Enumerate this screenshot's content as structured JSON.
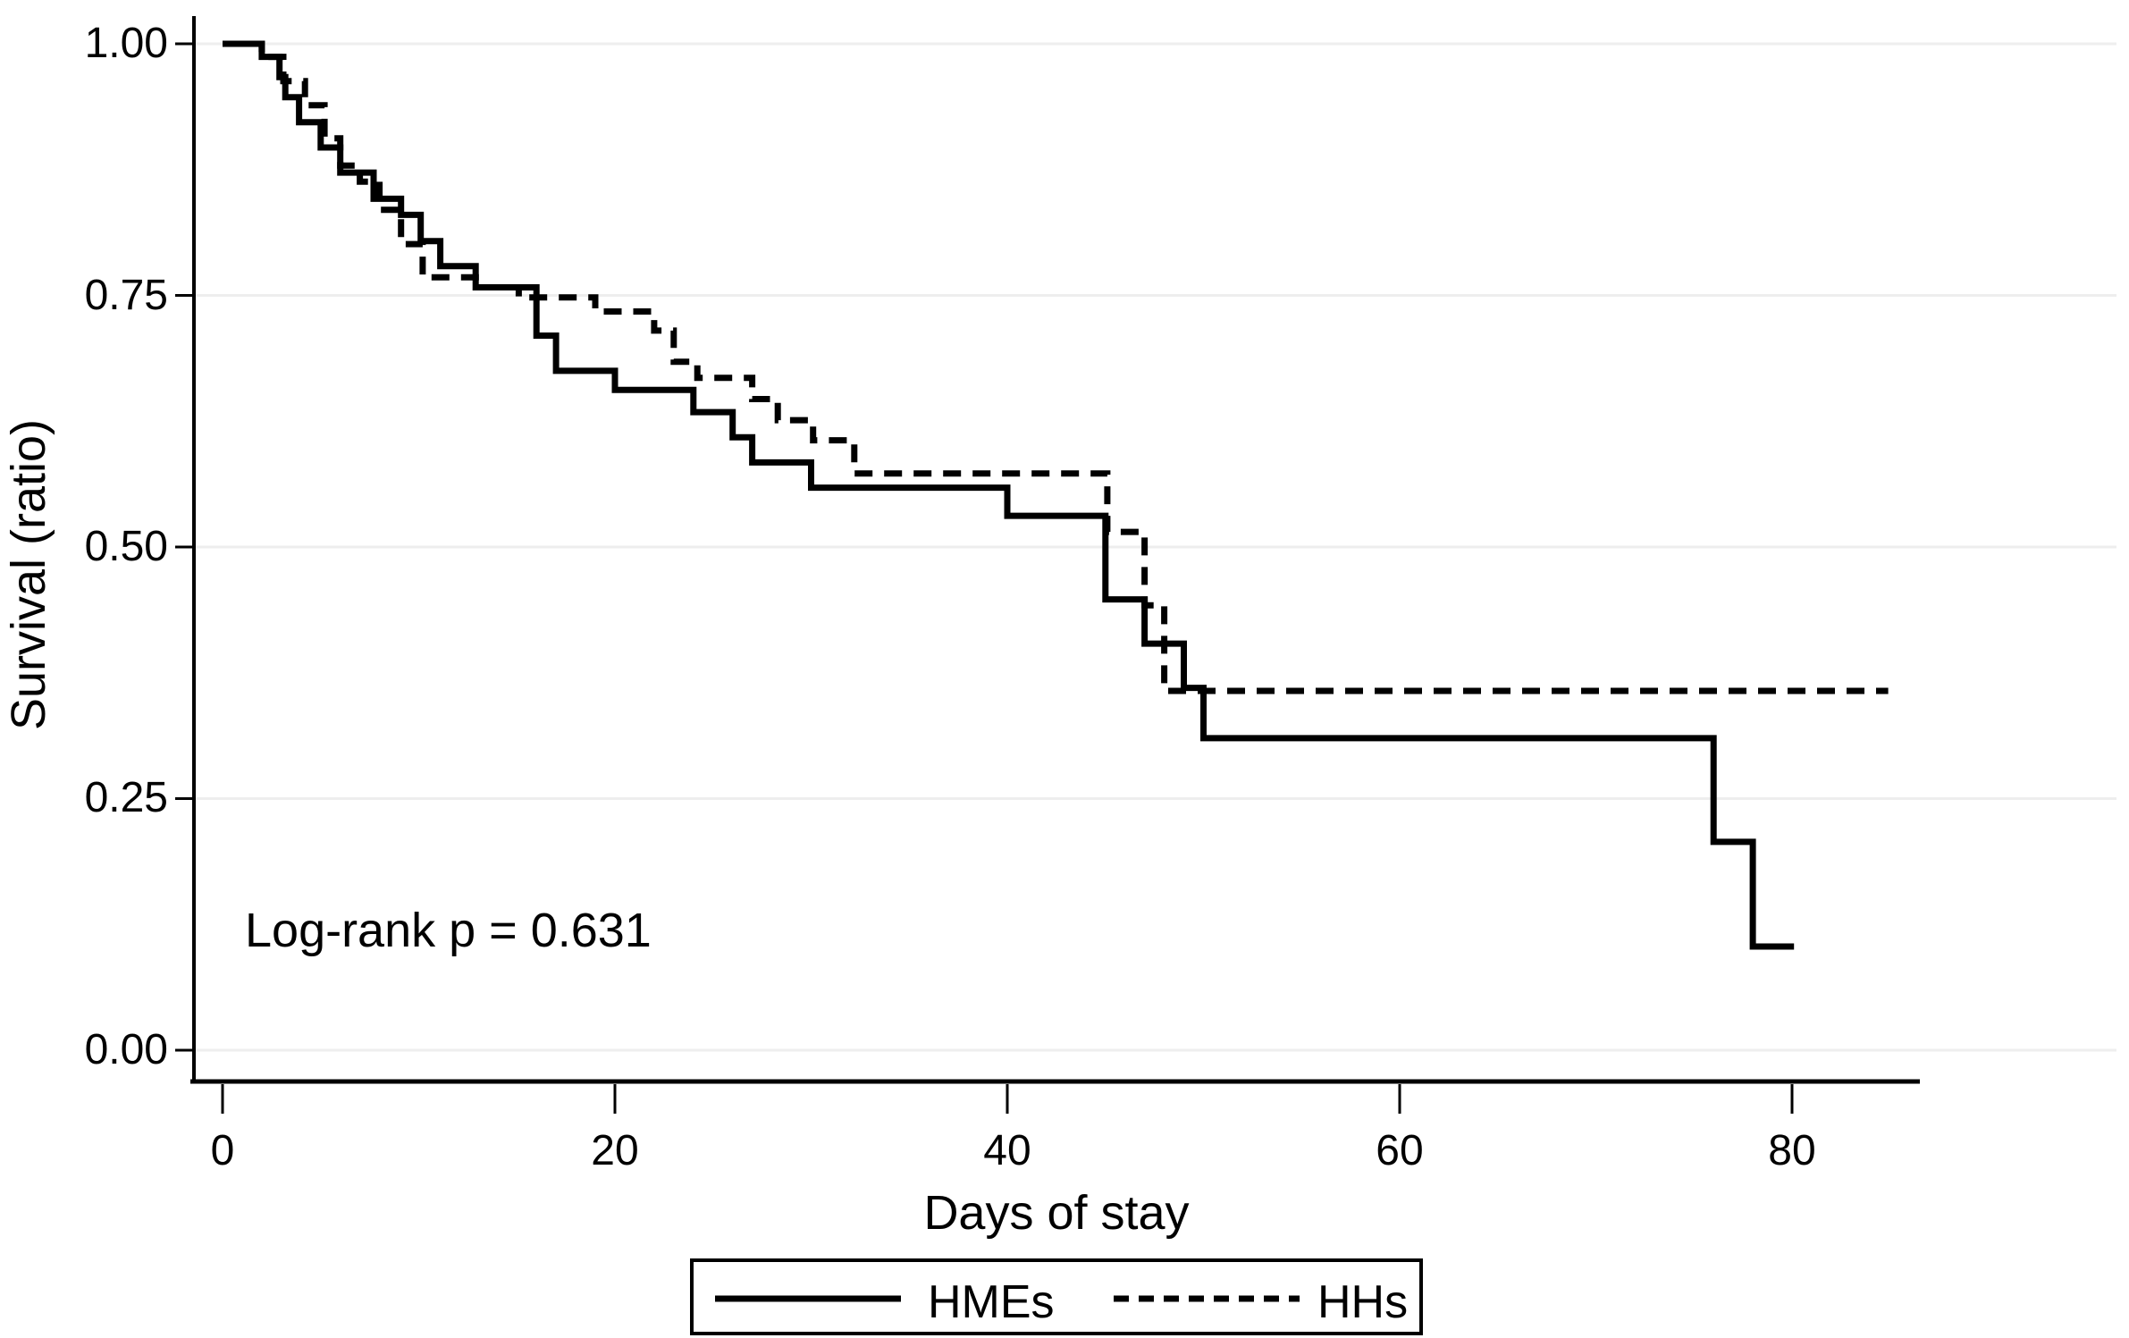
{
  "chart_data": {
    "type": "line",
    "subtype": "kaplan-meier-step",
    "title": "",
    "xlabel": "Days of stay",
    "ylabel": "Survival (ratio)",
    "xlim": [
      0,
      86.5
    ],
    "ylim": [
      0,
      1
    ],
    "grid": "horizontal light-gray lines at y ticks",
    "legend_position": "bottom-center below plot, boxed",
    "annotation": "Log-rank p = 0.631",
    "x_tick_labels": [
      "0",
      "20",
      "40",
      "60",
      "80"
    ],
    "x_tick_values": [
      0,
      20,
      40,
      60,
      80
    ],
    "y_tick_labels": [
      "1.00",
      "0.75",
      "0.50",
      "0.25",
      "0.00"
    ],
    "y_tick_values": [
      1.0,
      0.75,
      0.5,
      0.25,
      0.0
    ],
    "series": [
      {
        "name": "HHs",
        "style": "dashed",
        "points": [
          [
            0,
            1.0
          ],
          [
            2,
            0.987
          ],
          [
            3.1,
            0.963
          ],
          [
            4.2,
            0.939
          ],
          [
            5.2,
            0.906
          ],
          [
            6,
            0.879
          ],
          [
            7,
            0.863
          ],
          [
            8,
            0.835
          ],
          [
            9.1,
            0.801
          ],
          [
            10.2,
            0.768
          ],
          [
            13.3,
            0.758
          ],
          [
            15.1,
            0.748
          ],
          [
            19,
            0.734
          ],
          [
            22,
            0.715
          ],
          [
            23,
            0.684
          ],
          [
            24.2,
            0.668
          ],
          [
            27,
            0.647
          ],
          [
            28.3,
            0.626
          ],
          [
            30.1,
            0.606
          ],
          [
            32.2,
            0.573
          ],
          [
            45.1,
            0.515
          ],
          [
            47,
            0.442
          ],
          [
            48,
            0.357
          ],
          [
            84.9,
            0.357
          ]
        ]
      },
      {
        "name": "HMEs",
        "style": "solid",
        "points": [
          [
            0,
            1.0
          ],
          [
            2,
            0.987
          ],
          [
            2.9,
            0.967
          ],
          [
            3.2,
            0.947
          ],
          [
            3.9,
            0.922
          ],
          [
            5,
            0.897
          ],
          [
            6,
            0.872
          ],
          [
            7.7,
            0.846
          ],
          [
            9.1,
            0.83
          ],
          [
            10.1,
            0.804
          ],
          [
            11.1,
            0.779
          ],
          [
            12.9,
            0.758
          ],
          [
            16,
            0.71
          ],
          [
            17,
            0.675
          ],
          [
            20,
            0.656
          ],
          [
            24,
            0.634
          ],
          [
            26,
            0.609
          ],
          [
            27,
            0.584
          ],
          [
            30,
            0.559
          ],
          [
            40,
            0.531
          ],
          [
            45,
            0.448
          ],
          [
            47,
            0.404
          ],
          [
            49,
            0.36
          ],
          [
            50,
            0.31
          ],
          [
            76,
            0.207
          ],
          [
            78,
            0.103
          ],
          [
            80.1,
            0.103
          ]
        ]
      }
    ],
    "legend_entries": [
      {
        "label": "HMEs",
        "style": "solid"
      },
      {
        "label": "HHs",
        "style": "dashed"
      }
    ]
  },
  "colors": {
    "line": "#000000",
    "grid": "#eeeeee",
    "background": "#ffffff",
    "text": "#000000"
  }
}
